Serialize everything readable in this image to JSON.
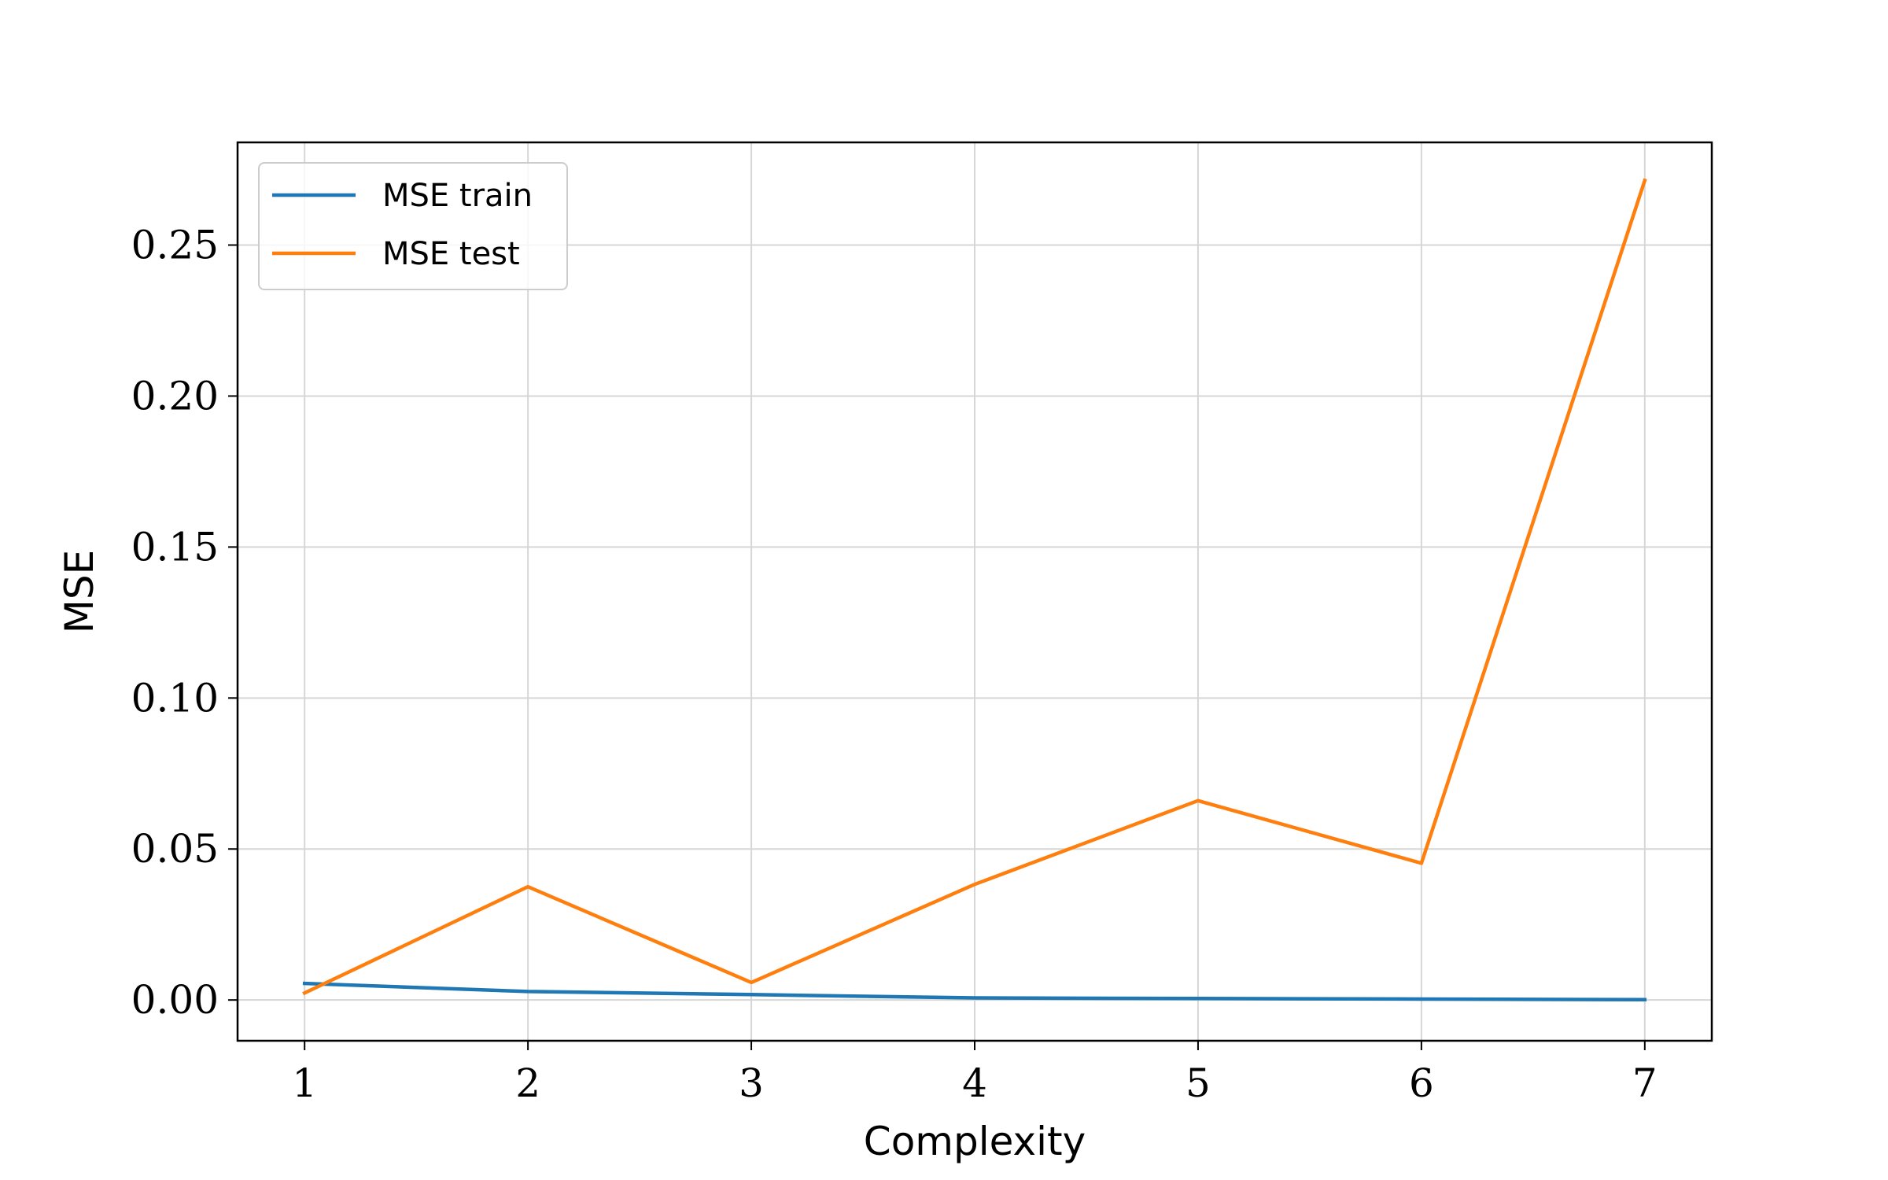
{
  "chart_data": {
    "type": "line",
    "title": "",
    "xlabel": "Complexity",
    "ylabel": "MSE",
    "x": [
      1,
      2,
      3,
      4,
      5,
      6,
      7
    ],
    "x_ticks": [
      "1",
      "2",
      "3",
      "4",
      "5",
      "6",
      "7"
    ],
    "y_ticks": [
      "0.00",
      "0.05",
      "0.10",
      "0.15",
      "0.20",
      "0.25"
    ],
    "y_tick_values": [
      0,
      0.05,
      0.1,
      0.15,
      0.2,
      0.25
    ],
    "xlim": [
      0.7,
      7.3
    ],
    "ylim": [
      -0.0135,
      0.284
    ],
    "grid": true,
    "legend_position": "top-left",
    "series": [
      {
        "name": "MSE train",
        "color": "#1f77b4",
        "values": [
          0.0055,
          0.0028,
          0.0018,
          0.0007,
          0.0005,
          0.0003,
          0.0001
        ]
      },
      {
        "name": "MSE test",
        "color": "#ff7f0e",
        "values": [
          0.0023,
          0.0375,
          0.0058,
          0.0383,
          0.066,
          0.0453,
          0.2714
        ]
      }
    ]
  }
}
